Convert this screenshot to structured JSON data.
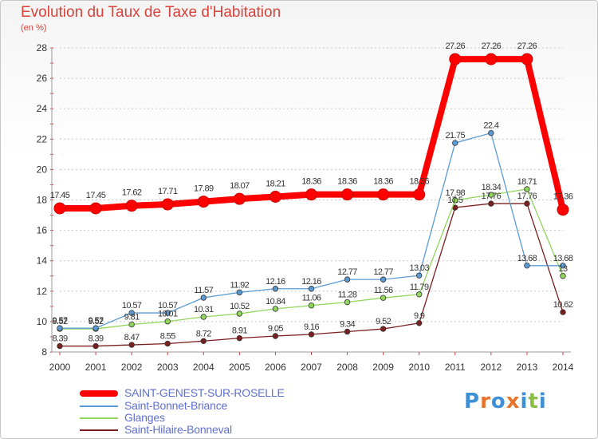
{
  "page": {
    "title": "Evolution du Taux de Taxe d'Habitation",
    "unit": "(en %)"
  },
  "brand": {
    "letters": [
      "P",
      "r",
      "o",
      "x",
      "i",
      "t",
      "i"
    ],
    "colors": [
      "#3d8fd6",
      "#e8732a",
      "#3d8fd6",
      "#e8732a",
      "#3d8fd6",
      "#8bbf3f",
      "#3d8fd6"
    ]
  },
  "chart_data": {
    "type": "line",
    "title": "Evolution du Taux de Taxe d'Habitation",
    "ylabel": "(en %)",
    "xlabel": "",
    "x": [
      2000,
      2001,
      2002,
      2003,
      2004,
      2005,
      2006,
      2007,
      2008,
      2009,
      2010,
      2011,
      2012,
      2013,
      2014
    ],
    "ylim": [
      8,
      28
    ],
    "yticks": [
      8,
      10,
      12,
      14,
      16,
      18,
      20,
      22,
      24,
      26,
      28
    ],
    "grid": "horizontal dashed",
    "legend_position": "bottom-left",
    "series": [
      {
        "name": "SAINT-GENEST-SUR-ROSELLE",
        "color": "#ff0000",
        "emphasis": true,
        "values": [
          17.45,
          17.45,
          17.62,
          17.71,
          17.89,
          18.07,
          18.21,
          18.36,
          18.36,
          18.36,
          18.36,
          27.26,
          27.26,
          27.26,
          17.36
        ],
        "labels": [
          "17.45",
          "17.45",
          "17.62",
          "17.71",
          "17.89",
          "18.07",
          "18.21",
          "18.36",
          "18.36",
          "18.36",
          "18.36",
          "27.26",
          "27.26",
          "27.26",
          "17.36"
        ]
      },
      {
        "name": "Saint-Bonnet-Briance",
        "color": "#5b9bd5",
        "emphasis": false,
        "values": [
          9.57,
          9.57,
          10.57,
          10.57,
          11.57,
          11.92,
          12.16,
          12.16,
          12.77,
          12.77,
          13.03,
          21.75,
          22.4,
          13.68,
          13.68
        ],
        "labels": [
          "9.57",
          "9.57",
          "10.57",
          "10.57",
          "11.57",
          "11.92",
          "12.16",
          "12.16",
          "12.77",
          "12.77",
          "13.03",
          "21.75",
          "22.4",
          "13.68",
          "13.68"
        ]
      },
      {
        "name": "Glanges",
        "color": "#8fd65b",
        "emphasis": false,
        "values": [
          9.52,
          9.52,
          9.81,
          10.01,
          10.31,
          10.52,
          10.84,
          11.06,
          11.28,
          11.56,
          11.79,
          17.98,
          18.34,
          18.71,
          13
        ],
        "labels": [
          "9.52",
          "9.52",
          "9.81",
          "10.01",
          "10.31",
          "10.52",
          "10.84",
          "11.06",
          "11.28",
          "11.56",
          "11.79",
          "17.98",
          "18.34",
          "18.71",
          "13"
        ]
      },
      {
        "name": "Saint-Hilaire-Bonneval",
        "color": "#7b1f1f",
        "emphasis": false,
        "values": [
          8.39,
          8.39,
          8.47,
          8.55,
          8.72,
          8.91,
          9.05,
          9.16,
          9.34,
          9.52,
          9.9,
          17.5,
          17.76,
          17.76,
          10.62
        ],
        "labels": [
          "8.39",
          "8.39",
          "8.47",
          "8.55",
          "8.72",
          "8.91",
          "9.05",
          "9.16",
          "9.34",
          "9.52",
          "9.9",
          "17.5",
          "17.76",
          "17.76",
          "10.62"
        ]
      }
    ]
  }
}
